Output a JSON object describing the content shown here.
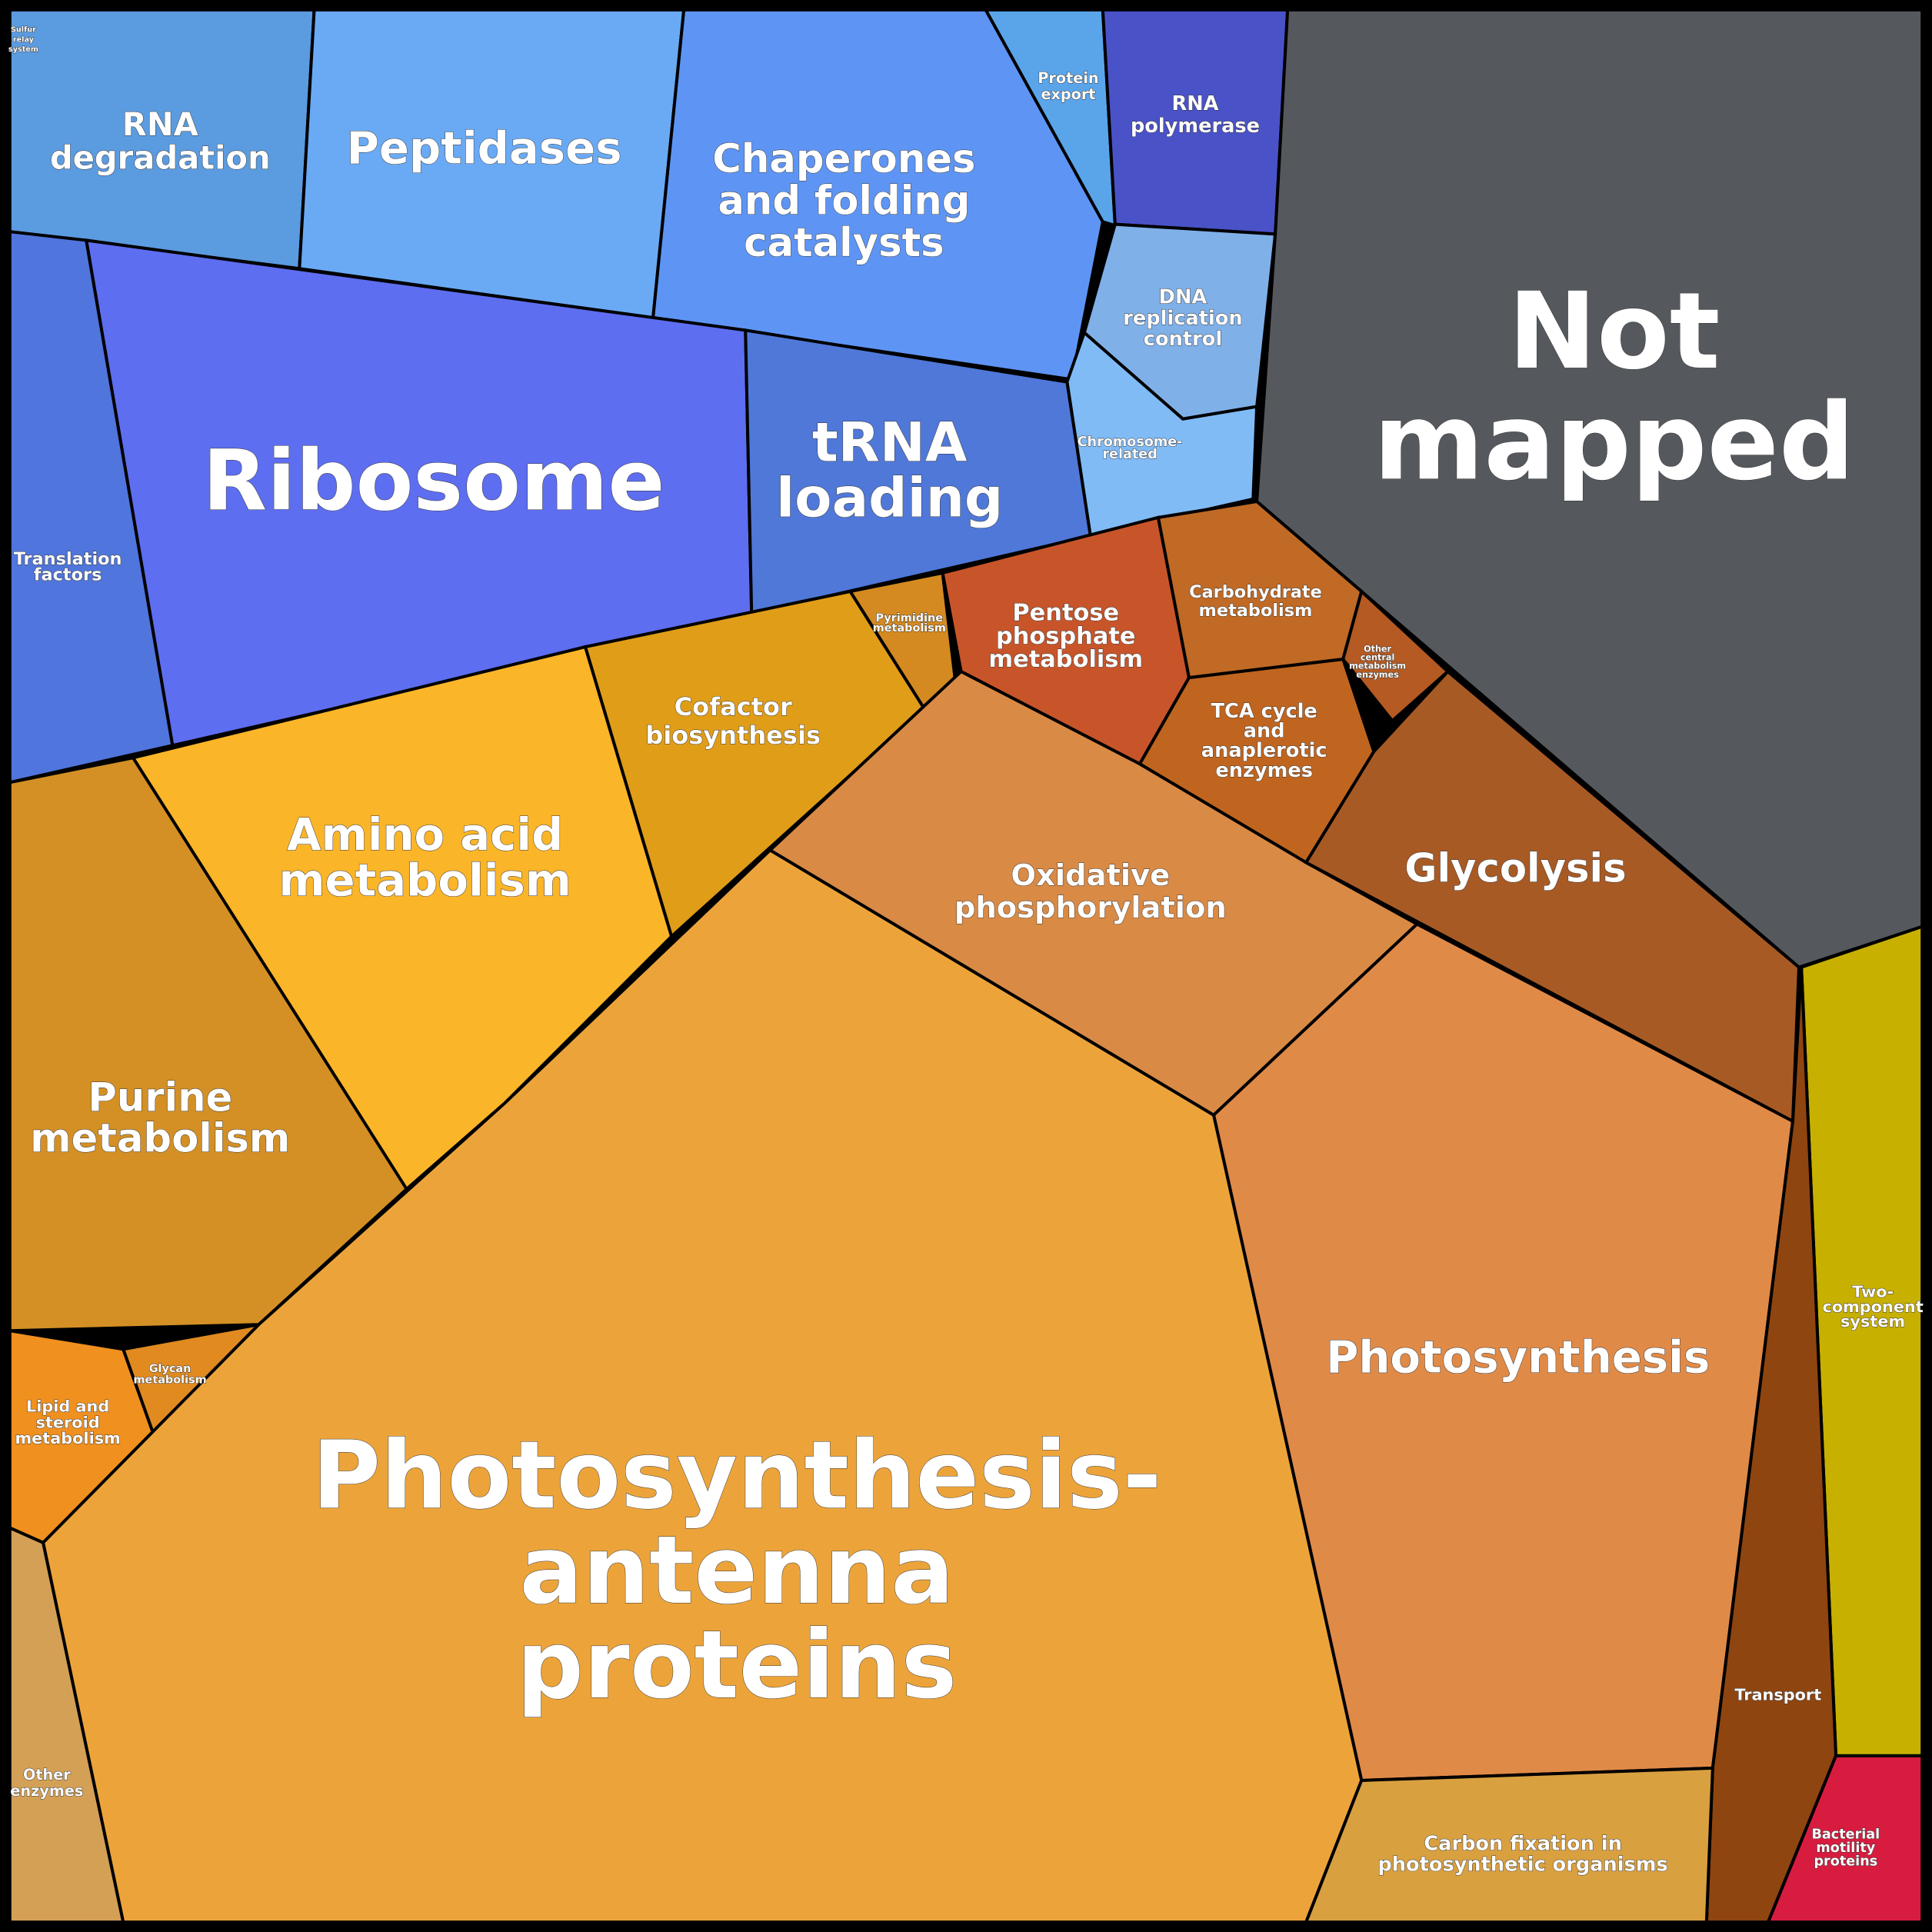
{
  "regions": [
    {
      "lines": [
        "Sulfur",
        "relay",
        "system"
      ],
      "color": "#4f8fe0"
    },
    {
      "lines": [
        "RNA",
        "degradation"
      ],
      "color": "#5b9be0"
    },
    {
      "lines": [
        "Peptidases"
      ],
      "color": "#6aaaf5"
    },
    {
      "lines": [
        "Chaperones",
        "and folding",
        "catalysts"
      ],
      "color": "#5e95f5"
    },
    {
      "lines": [
        "Protein",
        "export"
      ],
      "color": "#5aa5ea"
    },
    {
      "lines": [
        "RNA",
        "polymerase"
      ],
      "color": "#4a52c8"
    },
    {
      "lines": [
        "DNA",
        "replication",
        "control"
      ],
      "color": "#7fb0e8"
    },
    {
      "lines": [
        "Chromosome-",
        "related"
      ],
      "color": "#80bbf5"
    },
    {
      "lines": [
        "Not",
        "mapped"
      ],
      "color": "#55595e"
    },
    {
      "lines": [
        "Ribosome"
      ],
      "color": "#5e6ef0"
    },
    {
      "lines": [
        "tRNA",
        "loading"
      ],
      "color": "#4f78d8"
    },
    {
      "lines": [
        "Translation",
        "factors"
      ],
      "color": "#5075dc"
    },
    {
      "lines": [
        "Pyrimidine",
        "metabolism"
      ],
      "color": "#d48a20"
    },
    {
      "lines": [
        "Pentose",
        "phosphate",
        "metabolism"
      ],
      "color": "#c8552a"
    },
    {
      "lines": [
        "Carbohydrate",
        "metabolism"
      ],
      "color": "#c06a25"
    },
    {
      "lines": [
        "Other",
        "central",
        "metabolism",
        "enzymes"
      ],
      "color": "#b45a22"
    },
    {
      "lines": [
        "TCA cycle",
        "and",
        "anaplerotic",
        "enzymes"
      ],
      "color": "#c0651f"
    },
    {
      "lines": [
        "Cofactor",
        "biosynthesis"
      ],
      "color": "#e09d18"
    },
    {
      "lines": [
        "Amino acid",
        "metabolism"
      ],
      "color": "#fbb528"
    },
    {
      "lines": [
        "Oxidative",
        "phosphorylation"
      ],
      "color": "#d98a45"
    },
    {
      "lines": [
        "Glycolysis"
      ],
      "color": "#a85a25"
    },
    {
      "lines": [
        "Purine",
        "metabolism"
      ],
      "color": "#d49025"
    },
    {
      "lines": [
        "Photosynthesis"
      ],
      "color": "#e08a48"
    },
    {
      "lines": [
        "Two-",
        "component",
        "system"
      ],
      "color": "#c8b000"
    },
    {
      "lines": [
        "Lipid and",
        "steroid",
        "metabolism"
      ],
      "color": "#f0901e"
    },
    {
      "lines": [
        "Glycan",
        "metabolism"
      ],
      "color": "#e08a20"
    },
    {
      "lines": [
        "Photosynthesis-",
        "antenna",
        "proteins"
      ],
      "color": "#eca43a"
    },
    {
      "lines": [
        "Transport"
      ],
      "color": "#8f4510"
    },
    {
      "lines": [
        "Other",
        "enzymes"
      ],
      "color": "#d4a055"
    },
    {
      "lines": [
        "Carbon fixation in",
        "photosynthetic organisms"
      ],
      "color": "#d9a040"
    },
    {
      "lines": [
        "Bacterial",
        "motility",
        "proteins"
      ],
      "color": "#d81c40"
    }
  ]
}
